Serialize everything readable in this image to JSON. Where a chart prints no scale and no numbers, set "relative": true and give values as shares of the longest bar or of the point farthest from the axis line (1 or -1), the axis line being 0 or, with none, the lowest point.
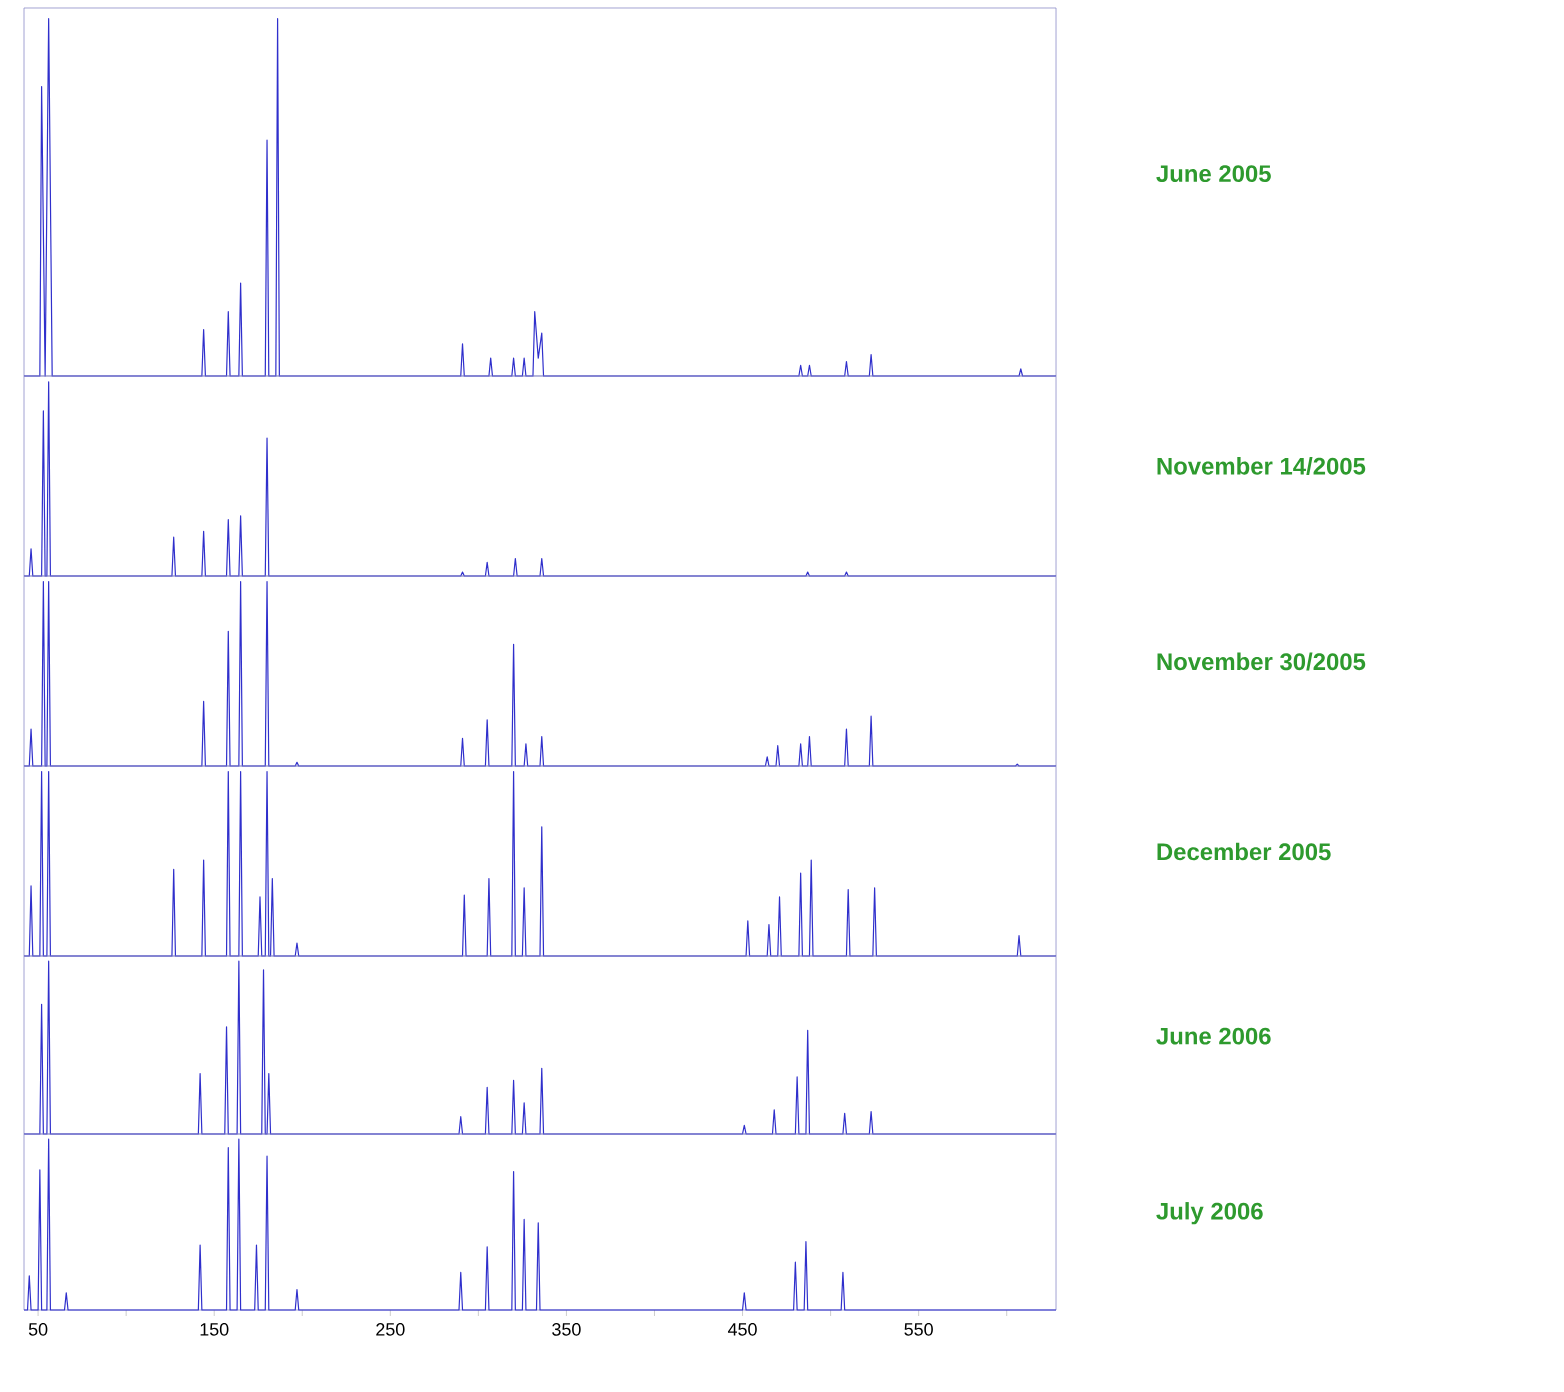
{
  "chart_data": [
    {
      "type": "line",
      "relative": true,
      "xlim": [
        42,
        628
      ],
      "tick_labels": false,
      "series": [
        {
          "name": "June 2005",
          "color": "#2f2fcc",
          "x": [
            42,
            51,
            52,
            54,
            56,
            58,
            143,
            144,
            145,
            157,
            158,
            159,
            164,
            165,
            166,
            179,
            180,
            181,
            185,
            186,
            187,
            290,
            291,
            292,
            306,
            307,
            308,
            319,
            320,
            321,
            325,
            326,
            327,
            331,
            332,
            334,
            336,
            337,
            482,
            483,
            484,
            487,
            488,
            489,
            508,
            509,
            510,
            522,
            523,
            524,
            607,
            608,
            609,
            628
          ],
          "values": [
            0,
            0,
            0.81,
            0,
            1.0,
            0,
            0,
            0.13,
            0,
            0,
            0.18,
            0,
            0,
            0.26,
            0,
            0,
            0.66,
            0,
            0,
            1.0,
            0,
            0,
            0.09,
            0,
            0,
            0.05,
            0,
            0,
            0.05,
            0,
            0,
            0.05,
            0,
            0,
            0.18,
            0.05,
            0.12,
            0,
            0,
            0.03,
            0,
            0,
            0.03,
            0,
            0,
            0.04,
            0,
            0,
            0.06,
            0,
            0,
            0.02,
            0,
            0
          ]
        }
      ]
    },
    {
      "type": "line",
      "relative": true,
      "xlim": [
        42,
        628
      ],
      "tick_labels": false,
      "series": [
        {
          "name": "November 14/2005",
          "color": "#2f2fcc",
          "x": [
            42,
            45,
            46,
            47,
            52,
            53,
            54,
            55,
            56,
            57,
            126,
            127,
            128,
            143,
            144,
            145,
            157,
            158,
            159,
            164,
            165,
            166,
            179,
            180,
            181,
            290,
            291,
            292,
            304,
            305,
            306,
            320,
            321,
            322,
            335,
            336,
            337,
            486,
            487,
            488,
            508,
            509,
            510,
            628
          ],
          "values": [
            0,
            0,
            0.14,
            0,
            0,
            0.85,
            0,
            0,
            1.0,
            0,
            0,
            0.2,
            0,
            0,
            0.23,
            0,
            0,
            0.29,
            0,
            0,
            0.31,
            0,
            0,
            0.71,
            0,
            0,
            0.02,
            0,
            0,
            0.07,
            0,
            0,
            0.09,
            0,
            0,
            0.09,
            0,
            0,
            0.02,
            0,
            0,
            0.02,
            0,
            0
          ]
        }
      ]
    },
    {
      "type": "line",
      "relative": true,
      "xlim": [
        42,
        628
      ],
      "tick_labels": false,
      "series": [
        {
          "name": "November 30/2005",
          "color": "#2f2fcc",
          "x": [
            42,
            45,
            46,
            47,
            52,
            53,
            54,
            55,
            56,
            57,
            143,
            144,
            145,
            157,
            158,
            159,
            164,
            165,
            166,
            179,
            180,
            181,
            196,
            197,
            198,
            290,
            291,
            292,
            304,
            305,
            306,
            319,
            320,
            321,
            326,
            327,
            328,
            335,
            336,
            337,
            463,
            464,
            465,
            469,
            470,
            471,
            482,
            483,
            484,
            487,
            488,
            489,
            508,
            509,
            510,
            522,
            523,
            524,
            605,
            606,
            607,
            628
          ],
          "values": [
            0,
            0,
            0.2,
            0,
            0,
            1.0,
            0,
            0,
            1.0,
            0,
            0,
            0.35,
            0,
            0,
            0.73,
            0,
            0,
            1.0,
            0,
            0,
            1.0,
            0,
            0,
            0.02,
            0,
            0,
            0.15,
            0,
            0,
            0.25,
            0,
            0,
            0.66,
            0,
            0,
            0.12,
            0,
            0,
            0.16,
            0,
            0,
            0.05,
            0,
            0,
            0.11,
            0,
            0,
            0.12,
            0,
            0,
            0.16,
            0,
            0,
            0.2,
            0,
            0,
            0.27,
            0,
            0,
            0.01,
            0,
            0
          ]
        }
      ]
    },
    {
      "type": "line",
      "relative": true,
      "xlim": [
        42,
        628
      ],
      "tick_labels": false,
      "series": [
        {
          "name": "December 2005",
          "color": "#2f2fcc",
          "x": [
            42,
            45,
            46,
            47,
            51,
            52,
            53,
            55,
            56,
            57,
            126,
            127,
            128,
            143,
            144,
            145,
            157,
            158,
            159,
            164,
            165,
            166,
            175,
            176,
            177,
            179,
            180,
            181,
            182,
            183,
            184,
            196,
            197,
            198,
            291,
            292,
            293,
            305,
            306,
            307,
            319,
            320,
            321,
            325,
            326,
            327,
            335,
            336,
            337,
            452,
            453,
            454,
            464,
            465,
            466,
            470,
            471,
            472,
            482,
            483,
            484,
            488,
            489,
            490,
            509,
            510,
            511,
            524,
            525,
            526,
            606,
            607,
            608,
            628
          ],
          "values": [
            0,
            0,
            0.38,
            0,
            0,
            1.0,
            0,
            0,
            1.0,
            0,
            0,
            0.47,
            0,
            0,
            0.52,
            0,
            0,
            1.0,
            0,
            0,
            1.0,
            0,
            0,
            0.32,
            0,
            0,
            1.0,
            0,
            0,
            0.42,
            0,
            0,
            0.07,
            0,
            0,
            0.33,
            0,
            0,
            0.42,
            0,
            0,
            1.0,
            0,
            0,
            0.37,
            0,
            0,
            0.7,
            0,
            0,
            0.19,
            0,
            0,
            0.17,
            0,
            0,
            0.32,
            0,
            0,
            0.45,
            0,
            0,
            0.52,
            0,
            0,
            0.36,
            0,
            0,
            0.37,
            0,
            0,
            0.11,
            0,
            0
          ]
        }
      ]
    },
    {
      "type": "line",
      "relative": true,
      "xlim": [
        42,
        628
      ],
      "tick_labels": false,
      "series": [
        {
          "name": "June 2006",
          "color": "#2f2fcc",
          "x": [
            42,
            51,
            52,
            53,
            55,
            56,
            57,
            141,
            142,
            143,
            156,
            157,
            158,
            163,
            164,
            165,
            177,
            178,
            179,
            180,
            181,
            182,
            289,
            290,
            291,
            304,
            305,
            306,
            319,
            320,
            321,
            325,
            326,
            327,
            335,
            336,
            337,
            450,
            451,
            452,
            467,
            468,
            469,
            480,
            481,
            482,
            486,
            487,
            488,
            507,
            508,
            509,
            522,
            523,
            524,
            628
          ],
          "values": [
            0,
            0,
            0.75,
            0,
            0,
            1.0,
            0,
            0,
            0.35,
            0,
            0,
            0.62,
            0,
            0,
            1.0,
            0,
            0,
            0.95,
            0,
            0,
            0.35,
            0,
            0,
            0.1,
            0,
            0,
            0.27,
            0,
            0,
            0.31,
            0,
            0,
            0.18,
            0,
            0,
            0.38,
            0,
            0,
            0.05,
            0,
            0,
            0.14,
            0,
            0,
            0.33,
            0,
            0,
            0.6,
            0,
            0,
            0.12,
            0,
            0,
            0.13,
            0,
            0
          ]
        }
      ]
    },
    {
      "type": "line",
      "relative": true,
      "xlim": [
        42,
        628
      ],
      "tick_labels": "x",
      "xticks": [
        50,
        {
          "value": 100,
          "label": null
        },
        150,
        {
          "value": 200,
          "label": null
        },
        250,
        {
          "value": 300,
          "label": null
        },
        350,
        {
          "value": 400,
          "label": null
        },
        450,
        {
          "value": 500,
          "label": null
        },
        550,
        {
          "value": 600,
          "label": null
        }
      ],
      "series": [
        {
          "name": "July 2006",
          "color": "#2f2fcc",
          "x": [
            42,
            44,
            45,
            46,
            50,
            51,
            52,
            55,
            56,
            57,
            65,
            66,
            67,
            141,
            142,
            143,
            157,
            158,
            159,
            163,
            164,
            165,
            173,
            174,
            175,
            179,
            180,
            181,
            196,
            197,
            198,
            289,
            290,
            291,
            304,
            305,
            306,
            319,
            320,
            321,
            325,
            326,
            327,
            333,
            334,
            335,
            450,
            451,
            452,
            479,
            480,
            481,
            485,
            486,
            487,
            506,
            507,
            508,
            628
          ],
          "values": [
            0,
            0,
            0.2,
            0,
            0,
            0.82,
            0,
            0,
            1.0,
            0,
            0,
            0.1,
            0,
            0,
            0.38,
            0,
            0,
            0.95,
            0,
            0,
            1.0,
            0,
            0,
            0.38,
            0,
            0,
            0.9,
            0,
            0,
            0.12,
            0,
            0,
            0.22,
            0,
            0,
            0.37,
            0,
            0,
            0.81,
            0,
            0,
            0.53,
            0,
            0,
            0.51,
            0,
            0,
            0.1,
            0,
            0,
            0.28,
            0,
            0,
            0.4,
            0,
            0,
            0.22,
            0,
            0
          ]
        }
      ]
    }
  ]
}
